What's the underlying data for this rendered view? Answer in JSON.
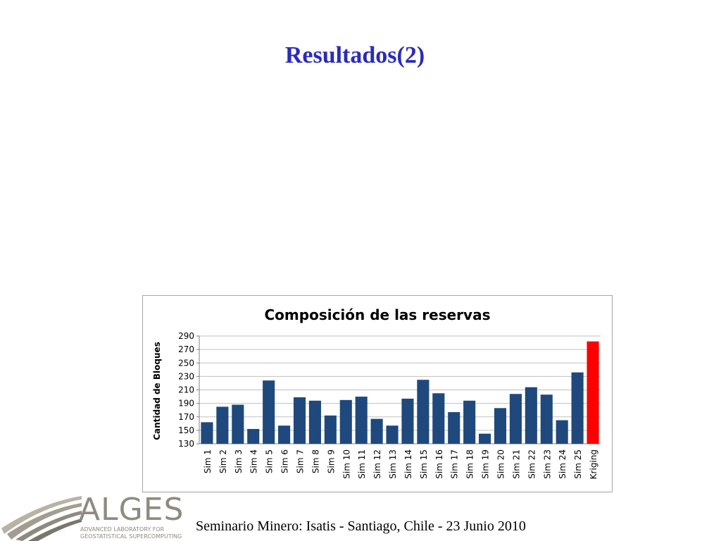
{
  "slide": {
    "title": "Resultados(2)",
    "footer": "Seminario Minero: Isatis - Santiago, Chile - 23 Junio 2010"
  },
  "logo": {
    "name": "ALGES",
    "subtitle_line1": "ADVANCED LABORATORY FOR",
    "subtitle_line2": "GEOSTATISTICAL SUPERCOMPUTING"
  },
  "chart_data": {
    "type": "bar",
    "title": "Composición de las reservas",
    "xlabel": "",
    "ylabel": "Cantidad de Bloques",
    "ylim": [
      130,
      290
    ],
    "yticks": [
      130,
      150,
      170,
      190,
      210,
      230,
      250,
      270,
      290
    ],
    "grid": true,
    "legend": "none",
    "categories": [
      "Sim 1",
      "Sim 2",
      "Sim 3",
      "Sim 4",
      "Sim 5",
      "Sim 6",
      "Sim 7",
      "Sim 8",
      "Sim 9",
      "Sim 10",
      "Sim 11",
      "Sim 12",
      "Sim 13",
      "Sim 14",
      "Sim 15",
      "Sim 16",
      "Sim 17",
      "Sim 18",
      "Sim 19",
      "Sim 20",
      "Sim 21",
      "Sim 22",
      "Sim 23",
      "Sim 24",
      "Sim 25",
      "Kriging"
    ],
    "values": [
      162,
      185,
      188,
      152,
      224,
      157,
      199,
      194,
      172,
      195,
      200,
      167,
      157,
      197,
      225,
      205,
      177,
      194,
      145,
      183,
      204,
      214,
      203,
      165,
      236,
      282
    ],
    "colors": {
      "bar": "#1f497d",
      "highlight": "#ff0000",
      "highlight_category": "Kriging",
      "grid": "#c0c0c0"
    }
  }
}
